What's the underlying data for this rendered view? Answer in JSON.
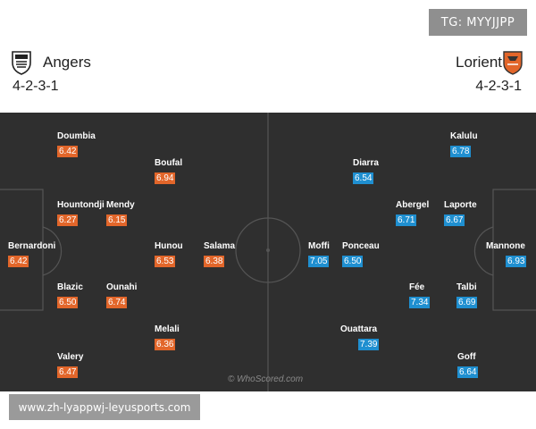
{
  "badge": {
    "text": "TG: MYYJJPP"
  },
  "match": {
    "home": {
      "name": "Angers",
      "formation": "4-2-3-1"
    },
    "away": {
      "name": "Lorient",
      "formation": "4-2-3-1"
    }
  },
  "watermark": "© WhoScored.com",
  "footer": {
    "url": "www.zh-lyappwj-leyusports.com"
  },
  "colors": {
    "home_rating": "#e2662a",
    "away_rating": "#1f8fd0",
    "pitch": "#2f2f2f"
  },
  "players": {
    "home": [
      {
        "name": "Doumbia",
        "rating": "6.42"
      },
      {
        "name": "Boufal",
        "rating": "6.94"
      },
      {
        "name": "Hountondji",
        "rating": "6.27"
      },
      {
        "name": "Mendy",
        "rating": "6.15"
      },
      {
        "name": "Bernardoni",
        "rating": "6.42"
      },
      {
        "name": "Hunou",
        "rating": "6.53"
      },
      {
        "name": "Salama",
        "rating": "6.38"
      },
      {
        "name": "Blazic",
        "rating": "6.50"
      },
      {
        "name": "Ounahi",
        "rating": "6.74"
      },
      {
        "name": "Melali",
        "rating": "6.36"
      },
      {
        "name": "Valery",
        "rating": "6.47"
      }
    ],
    "away": [
      {
        "name": "Kalulu",
        "rating": "6.78"
      },
      {
        "name": "Diarra",
        "rating": "6.54"
      },
      {
        "name": "Abergel",
        "rating": "6.71"
      },
      {
        "name": "Laporte",
        "rating": "6.67"
      },
      {
        "name": "Moffi",
        "rating": "7.05"
      },
      {
        "name": "Ponceau",
        "rating": "6.50"
      },
      {
        "name": "Mannone",
        "rating": "6.93"
      },
      {
        "name": "Fée",
        "rating": "7.34"
      },
      {
        "name": "Talbi",
        "rating": "6.69"
      },
      {
        "name": "Ouattara",
        "rating": "7.39"
      },
      {
        "name": "Goff",
        "rating": "6.64"
      }
    ]
  }
}
